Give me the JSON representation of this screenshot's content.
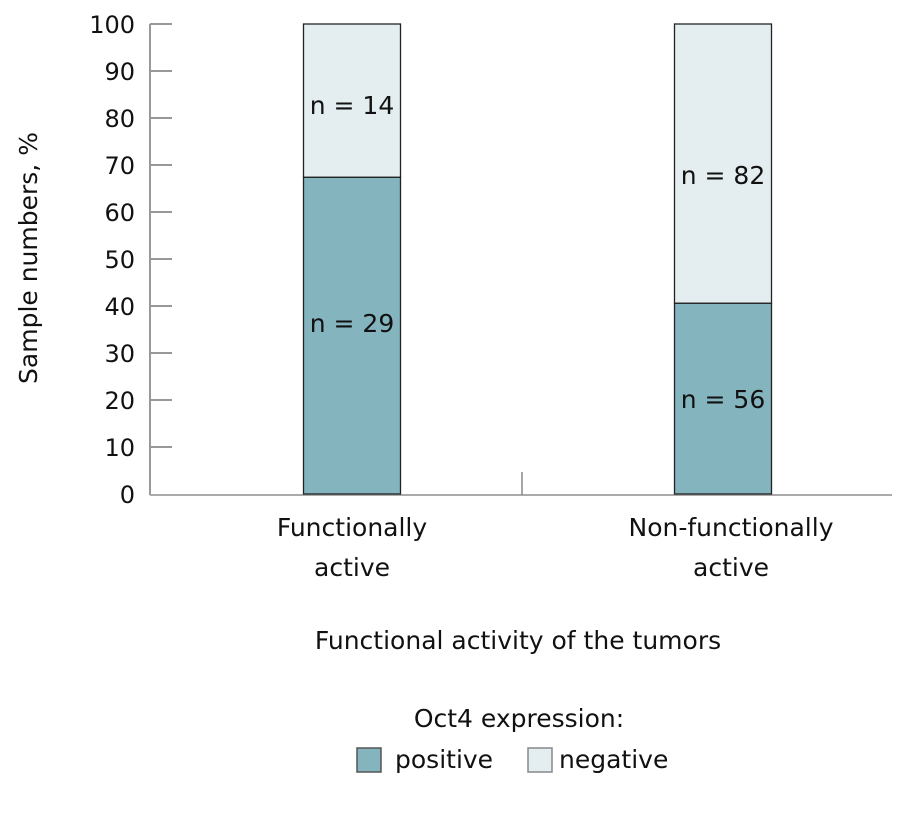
{
  "chart_data": {
    "type": "bar",
    "stacked": true,
    "title": "",
    "xlabel": "Functional activity of the tumors",
    "ylabel": "Sample numbers, %",
    "ylim": [
      0,
      100
    ],
    "yticks": [
      "0",
      "10",
      "20",
      "30",
      "40",
      "50",
      "60",
      "70",
      "80",
      "90",
      "100"
    ],
    "categories": [
      {
        "line1": "Functionally",
        "line2": "active"
      },
      {
        "line1": "Non-functionally",
        "line2": "active"
      }
    ],
    "series": [
      {
        "name": "positive",
        "color": "#84b4be",
        "values": [
          67.4,
          40.6
        ],
        "labels": [
          "n = 29",
          "n = 56"
        ]
      },
      {
        "name": "negative",
        "color": "#e4eef0",
        "values": [
          32.6,
          59.4
        ],
        "labels": [
          "n = 14",
          "n = 82"
        ]
      }
    ],
    "legend": {
      "title": "Oct4 expression:",
      "placement": "bottom"
    },
    "grid": false
  }
}
